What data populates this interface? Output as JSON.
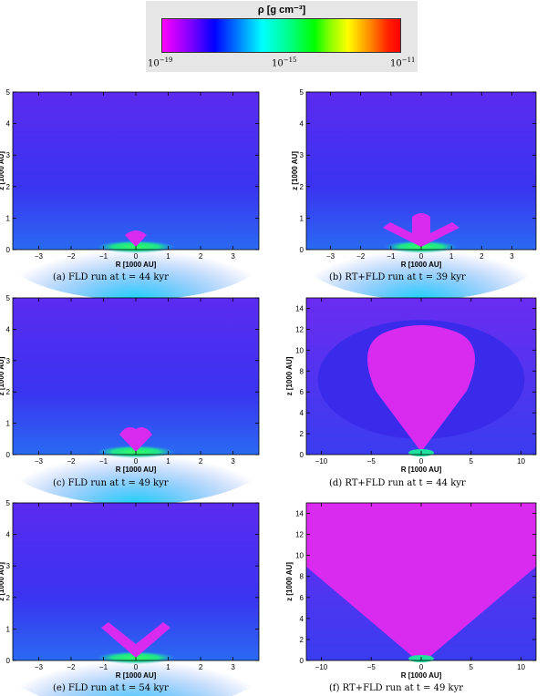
{
  "colorbar": {
    "title": "ρ [g cm⁻³]",
    "ticks": [
      {
        "base": "10",
        "exp": "−19"
      },
      {
        "base": "10",
        "exp": "−15"
      },
      {
        "base": "10",
        "exp": "−11"
      }
    ]
  },
  "panels": [
    {
      "id": "a",
      "caption": "(a)  FLD run at t = 44 kyr",
      "ylabel": "z [1000 AU]",
      "xlabel": "R [1000 AU]",
      "xticks": [
        "−3",
        "−2",
        "−1",
        "0",
        "1",
        "2",
        "3"
      ],
      "yticks": [
        "0",
        "1",
        "2",
        "3",
        "4",
        "5"
      ]
    },
    {
      "id": "b",
      "caption": "(b)  RT+FLD run at t = 39 kyr",
      "ylabel": "z [1000 AU]",
      "xlabel": "R [1000 AU]",
      "xticks": [
        "−3",
        "−2",
        "−1",
        "0",
        "1",
        "2",
        "3"
      ],
      "yticks": [
        "0",
        "1",
        "2",
        "3",
        "4",
        "5"
      ]
    },
    {
      "id": "c",
      "caption": "(c)  FLD run at t = 49 kyr",
      "ylabel": "z [1000 AU]",
      "xlabel": "R [1000 AU]",
      "xticks": [
        "−3",
        "−2",
        "−1",
        "0",
        "1",
        "2",
        "3"
      ],
      "yticks": [
        "0",
        "1",
        "2",
        "3",
        "4",
        "5"
      ]
    },
    {
      "id": "d",
      "caption": "(d)  RT+FLD run at t = 44 kyr",
      "ylabel": "z [1000 AU]",
      "xlabel": "R [1000 AU]",
      "xticks": [
        "−10",
        "−5",
        "0",
        "5",
        "10"
      ],
      "yticks": [
        "0",
        "2",
        "4",
        "6",
        "8",
        "10",
        "12",
        "14"
      ]
    },
    {
      "id": "e",
      "caption": "(e)  FLD run at t = 54 kyr",
      "ylabel": "z [1000 AU]",
      "xlabel": "R [1000 AU]",
      "xticks": [
        "−3",
        "−2",
        "−1",
        "0",
        "1",
        "2",
        "3"
      ],
      "yticks": [
        "0",
        "1",
        "2",
        "3",
        "4",
        "5"
      ]
    },
    {
      "id": "f",
      "caption": "(f)  RT+FLD run at t = 49 kyr",
      "ylabel": "z [1000 AU]",
      "xlabel": "R [1000 AU]",
      "xticks": [
        "−10",
        "−5",
        "0",
        "5",
        "10"
      ],
      "yticks": [
        "0",
        "2",
        "4",
        "6",
        "8",
        "10",
        "12",
        "14"
      ]
    }
  ],
  "colors": {
    "background_density": "#3a2fe8",
    "cavity": "#d92bf0",
    "disk": "#19e060"
  }
}
